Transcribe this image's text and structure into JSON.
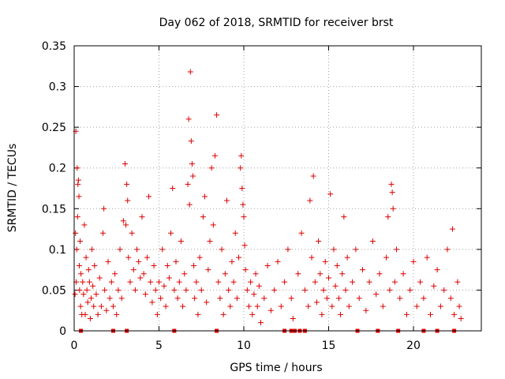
{
  "chart_data": {
    "type": "scatter",
    "title": "Day 062 of 2018, SRMTID for receiver brst",
    "xlabel": "GPS time / hours",
    "ylabel": "SRMTID / TECUs",
    "xlim": [
      0,
      24
    ],
    "ylim": [
      0,
      0.35
    ],
    "xticks": [
      0,
      5,
      10,
      15,
      20
    ],
    "yticks": [
      0,
      0.05,
      0.1,
      0.15,
      0.2,
      0.25,
      0.3,
      0.35
    ],
    "xtick_labels": [
      "0",
      "5",
      "10",
      "15",
      "20"
    ],
    "ytick_labels": [
      "0",
      "0.05",
      "0.1",
      "0.15",
      "0.2",
      "0.25",
      "0.3",
      "0.35"
    ],
    "grid": true,
    "marker": "+",
    "color": "#dd0000",
    "series": [
      {
        "name": "SRMTID",
        "points": [
          [
            0.05,
            0.045
          ],
          [
            0.08,
            0.12
          ],
          [
            0.1,
            0.245
          ],
          [
            0.12,
            0.06
          ],
          [
            0.15,
            0.1
          ],
          [
            0.18,
            0.2
          ],
          [
            0.2,
            0.14
          ],
          [
            0.22,
            0.18
          ],
          [
            0.25,
            0.185
          ],
          [
            0.28,
            0.165
          ],
          [
            0.3,
            0.08
          ],
          [
            0.32,
            0.05
          ],
          [
            0.35,
            0.11
          ],
          [
            0.38,
            0.03
          ],
          [
            0.4,
            0.07
          ],
          [
            0.45,
            0.02
          ],
          [
            0.5,
            0.06
          ],
          [
            0.55,
            0.045
          ],
          [
            0.6,
            0.13
          ],
          [
            0.65,
            0.02
          ],
          [
            0.7,
            0.09
          ],
          [
            0.75,
            0.05
          ],
          [
            0.8,
            0.035
          ],
          [
            0.85,
            0.075
          ],
          [
            0.9,
            0.06
          ],
          [
            0.95,
            0.015
          ],
          [
            1.0,
            0.04
          ],
          [
            1.05,
            0.1
          ],
          [
            1.1,
            0.055
          ],
          [
            1.15,
            0.03
          ],
          [
            1.2,
            0.08
          ],
          [
            1.3,
            0.045
          ],
          [
            1.4,
            0.02
          ],
          [
            1.5,
            0.065
          ],
          [
            1.6,
            0.03
          ],
          [
            1.7,
            0.12
          ],
          [
            1.75,
            0.15
          ],
          [
            1.8,
            0.05
          ],
          [
            1.9,
            0.025
          ],
          [
            2.0,
            0.085
          ],
          [
            2.1,
            0.04
          ],
          [
            2.2,
            0.06
          ],
          [
            2.3,
            0.03
          ],
          [
            2.4,
            0.07
          ],
          [
            2.5,
            0.02
          ],
          [
            2.6,
            0.05
          ],
          [
            2.7,
            0.1
          ],
          [
            2.8,
            0.04
          ],
          [
            2.9,
            0.135
          ],
          [
            3.0,
            0.205
          ],
          [
            3.05,
            0.13
          ],
          [
            3.1,
            0.18
          ],
          [
            3.15,
            0.16
          ],
          [
            3.2,
            0.09
          ],
          [
            3.3,
            0.06
          ],
          [
            3.4,
            0.12
          ],
          [
            3.5,
            0.075
          ],
          [
            3.6,
            0.05
          ],
          [
            3.7,
            0.1
          ],
          [
            3.8,
            0.085
          ],
          [
            3.9,
            0.065
          ],
          [
            4.0,
            0.14
          ],
          [
            4.1,
            0.07
          ],
          [
            4.2,
            0.045
          ],
          [
            4.3,
            0.09
          ],
          [
            4.4,
            0.165
          ],
          [
            4.5,
            0.06
          ],
          [
            4.6,
            0.035
          ],
          [
            4.7,
            0.08
          ],
          [
            4.8,
            0.05
          ],
          [
            4.9,
            0.02
          ],
          [
            5.0,
            0.06
          ],
          [
            5.1,
            0.04
          ],
          [
            5.2,
            0.1
          ],
          [
            5.3,
            0.055
          ],
          [
            5.4,
            0.03
          ],
          [
            5.5,
            0.08
          ],
          [
            5.6,
            0.065
          ],
          [
            5.7,
            0.12
          ],
          [
            5.8,
            0.175
          ],
          [
            5.9,
            0.05
          ],
          [
            6.0,
            0.085
          ],
          [
            6.1,
            0.04
          ],
          [
            6.2,
            0.06
          ],
          [
            6.3,
            0.11
          ],
          [
            6.4,
            0.03
          ],
          [
            6.5,
            0.07
          ],
          [
            6.6,
            0.05
          ],
          [
            6.7,
            0.18
          ],
          [
            6.75,
            0.26
          ],
          [
            6.8,
            0.155
          ],
          [
            6.85,
            0.318
          ],
          [
            6.9,
            0.233
          ],
          [
            6.95,
            0.205
          ],
          [
            7.0,
            0.19
          ],
          [
            7.05,
            0.08
          ],
          [
            7.1,
            0.04
          ],
          [
            7.2,
            0.06
          ],
          [
            7.3,
            0.02
          ],
          [
            7.4,
            0.09
          ],
          [
            7.5,
            0.05
          ],
          [
            7.6,
            0.14
          ],
          [
            7.7,
            0.165
          ],
          [
            7.8,
            0.035
          ],
          [
            7.9,
            0.075
          ],
          [
            8.0,
            0.11
          ],
          [
            8.1,
            0.2
          ],
          [
            8.2,
            0.13
          ],
          [
            8.3,
            0.215
          ],
          [
            8.4,
            0.265
          ],
          [
            8.5,
            0.06
          ],
          [
            8.6,
            0.04
          ],
          [
            8.7,
            0.1
          ],
          [
            8.8,
            0.02
          ],
          [
            8.9,
            0.07
          ],
          [
            9.0,
            0.16
          ],
          [
            9.1,
            0.05
          ],
          [
            9.2,
            0.03
          ],
          [
            9.3,
            0.085
          ],
          [
            9.4,
            0.06
          ],
          [
            9.5,
            0.12
          ],
          [
            9.6,
            0.04
          ],
          [
            9.7,
            0.09
          ],
          [
            9.8,
            0.2
          ],
          [
            9.85,
            0.215
          ],
          [
            9.9,
            0.175
          ],
          [
            9.95,
            0.155
          ],
          [
            10.0,
            0.14
          ],
          [
            10.05,
            0.105
          ],
          [
            10.1,
            0.075
          ],
          [
            10.2,
            0.05
          ],
          [
            10.3,
            0.03
          ],
          [
            10.4,
            0.06
          ],
          [
            10.5,
            0.02
          ],
          [
            10.6,
            0.045
          ],
          [
            10.7,
            0.07
          ],
          [
            10.8,
            0.03
          ],
          [
            10.9,
            0.055
          ],
          [
            11.0,
            0.01
          ],
          [
            11.2,
            0.04
          ],
          [
            11.4,
            0.08
          ],
          [
            11.6,
            0.025
          ],
          [
            11.8,
            0.05
          ],
          [
            12.0,
            0.085
          ],
          [
            12.2,
            0.03
          ],
          [
            12.4,
            0.06
          ],
          [
            12.6,
            0.1
          ],
          [
            12.8,
            0.04
          ],
          [
            12.9,
            0.015
          ],
          [
            13.2,
            0.07
          ],
          [
            13.4,
            0.12
          ],
          [
            13.6,
            0.05
          ],
          [
            13.8,
            0.03
          ],
          [
            13.9,
            0.16
          ],
          [
            14.0,
            0.09
          ],
          [
            14.1,
            0.19
          ],
          [
            14.2,
            0.06
          ],
          [
            14.3,
            0.035
          ],
          [
            14.4,
            0.11
          ],
          [
            14.5,
            0.07
          ],
          [
            14.6,
            0.02
          ],
          [
            14.7,
            0.05
          ],
          [
            14.8,
            0.085
          ],
          [
            14.9,
            0.04
          ],
          [
            15.0,
            0.065
          ],
          [
            15.1,
            0.168
          ],
          [
            15.2,
            0.03
          ],
          [
            15.3,
            0.1
          ],
          [
            15.4,
            0.055
          ],
          [
            15.5,
            0.08
          ],
          [
            15.6,
            0.04
          ],
          [
            15.7,
            0.02
          ],
          [
            15.8,
            0.07
          ],
          [
            15.9,
            0.14
          ],
          [
            16.0,
            0.05
          ],
          [
            16.1,
            0.09
          ],
          [
            16.2,
            0.03
          ],
          [
            16.4,
            0.06
          ],
          [
            16.6,
            0.1
          ],
          [
            16.8,
            0.04
          ],
          [
            17.0,
            0.075
          ],
          [
            17.2,
            0.025
          ],
          [
            17.4,
            0.06
          ],
          [
            17.6,
            0.11
          ],
          [
            17.8,
            0.045
          ],
          [
            18.0,
            0.07
          ],
          [
            18.2,
            0.03
          ],
          [
            18.4,
            0.09
          ],
          [
            18.5,
            0.14
          ],
          [
            18.6,
            0.05
          ],
          [
            18.7,
            0.18
          ],
          [
            18.75,
            0.17
          ],
          [
            18.8,
            0.15
          ],
          [
            18.9,
            0.06
          ],
          [
            19.0,
            0.1
          ],
          [
            19.2,
            0.04
          ],
          [
            19.4,
            0.07
          ],
          [
            19.6,
            0.02
          ],
          [
            19.8,
            0.05
          ],
          [
            20.0,
            0.085
          ],
          [
            20.2,
            0.03
          ],
          [
            20.4,
            0.06
          ],
          [
            20.6,
            0.04
          ],
          [
            20.8,
            0.09
          ],
          [
            21.0,
            0.02
          ],
          [
            21.2,
            0.055
          ],
          [
            21.4,
            0.075
          ],
          [
            21.6,
            0.03
          ],
          [
            21.8,
            0.05
          ],
          [
            22.0,
            0.1
          ],
          [
            22.2,
            0.04
          ],
          [
            22.3,
            0.125
          ],
          [
            22.4,
            0.02
          ],
          [
            22.6,
            0.06
          ],
          [
            22.7,
            0.03
          ],
          [
            22.8,
            0.015
          ],
          [
            0.4,
            0.0
          ],
          [
            2.3,
            0.0
          ],
          [
            3.1,
            0.0
          ],
          [
            5.9,
            0.0
          ],
          [
            8.4,
            0.0
          ],
          [
            12.4,
            0.0
          ],
          [
            12.8,
            0.0
          ],
          [
            13.0,
            0.0
          ],
          [
            13.3,
            0.0
          ],
          [
            13.6,
            0.0
          ],
          [
            16.7,
            0.0
          ],
          [
            17.9,
            0.0
          ],
          [
            19.1,
            0.0
          ],
          [
            20.6,
            0.0
          ],
          [
            21.4,
            0.0
          ],
          [
            22.4,
            0.0
          ]
        ]
      }
    ]
  }
}
